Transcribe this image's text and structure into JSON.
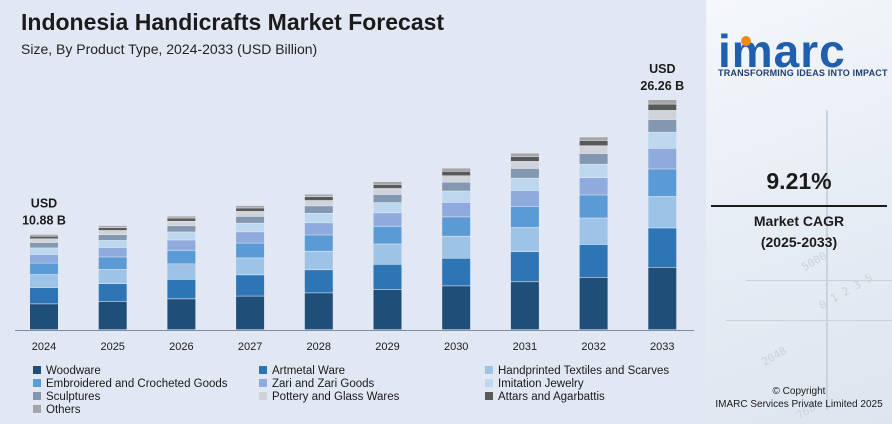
{
  "header": {
    "title": "Indonesia Handicrafts Market Forecast",
    "subtitle": "Size, By Product Type, 2024-2033 (USD Billion)"
  },
  "brand": {
    "logo_text": "imarc",
    "tagline": "TRANSFORMING IDEAS INTO IMPACT",
    "primary_color": "#1f5fae",
    "accent_color": "#f08a1c"
  },
  "kpi": {
    "cagr_value": "9.21%",
    "cagr_label": "Market CAGR",
    "cagr_period": "(2025-2033)"
  },
  "footer": {
    "copyright_line1": "© Copyright",
    "copyright_line2": "IMARC Services Private Limited 2025"
  },
  "chart_data": {
    "type": "bar",
    "stacked": true,
    "categories": [
      "2024",
      "2025",
      "2026",
      "2027",
      "2028",
      "2029",
      "2030",
      "2031",
      "2032",
      "2033"
    ],
    "totals": [
      10.88,
      11.88,
      12.97,
      14.17,
      15.47,
      16.9,
      18.45,
      20.15,
      22.0,
      26.26
    ],
    "annotations": [
      {
        "category": "2024",
        "line1": "USD",
        "line2": "10.88 B"
      },
      {
        "category": "2033",
        "line1": "USD",
        "line2": "26.26 B"
      }
    ],
    "ylim": [
      0,
      28
    ],
    "grid": false,
    "legend_position": "bottom",
    "series": [
      {
        "name": "Woodware",
        "color": "#1f4e79",
        "values": [
          2.95,
          3.22,
          3.52,
          3.84,
          4.2,
          4.58,
          5.0,
          5.47,
          5.97,
          7.12
        ]
      },
      {
        "name": "Artmetal Ware",
        "color": "#2e75b6",
        "values": [
          1.86,
          2.03,
          2.22,
          2.42,
          2.64,
          2.89,
          3.15,
          3.44,
          3.76,
          4.49
        ]
      },
      {
        "name": "Handprinted Textiles and Scarves",
        "color": "#9dc3e6",
        "values": [
          1.49,
          1.63,
          1.78,
          1.94,
          2.12,
          2.32,
          2.53,
          2.76,
          3.02,
          3.6
        ]
      },
      {
        "name": "Embroidered and Crocheted Goods",
        "color": "#5b9bd5",
        "values": [
          1.3,
          1.42,
          1.55,
          1.69,
          1.85,
          2.02,
          2.2,
          2.41,
          2.63,
          3.14
        ]
      },
      {
        "name": "Zari and Zari Goods",
        "color": "#8faadc",
        "values": [
          0.98,
          1.07,
          1.17,
          1.28,
          1.39,
          1.52,
          1.66,
          1.81,
          1.98,
          2.36
        ]
      },
      {
        "name": "Imitation Jewelry",
        "color": "#bdd7ee",
        "values": [
          0.76,
          0.83,
          0.91,
          0.99,
          1.08,
          1.18,
          1.29,
          1.41,
          1.54,
          1.84
        ]
      },
      {
        "name": "Sculptures",
        "color": "#8497b0",
        "values": [
          0.6,
          0.65,
          0.71,
          0.78,
          0.85,
          0.93,
          1.01,
          1.11,
          1.21,
          1.44
        ]
      },
      {
        "name": "Pottery and Glass Wares",
        "color": "#d0d4da",
        "values": [
          0.44,
          0.48,
          0.52,
          0.57,
          0.62,
          0.68,
          0.74,
          0.81,
          0.88,
          1.05
        ]
      },
      {
        "name": "Attars and Agarbattis",
        "color": "#595959",
        "values": [
          0.3,
          0.33,
          0.36,
          0.39,
          0.43,
          0.47,
          0.51,
          0.56,
          0.61,
          0.72
        ]
      },
      {
        "name": "Others",
        "color": "#a5a5a5",
        "values": [
          0.2,
          0.22,
          0.23,
          0.27,
          0.29,
          0.31,
          0.36,
          0.37,
          0.4,
          0.5
        ]
      }
    ]
  }
}
